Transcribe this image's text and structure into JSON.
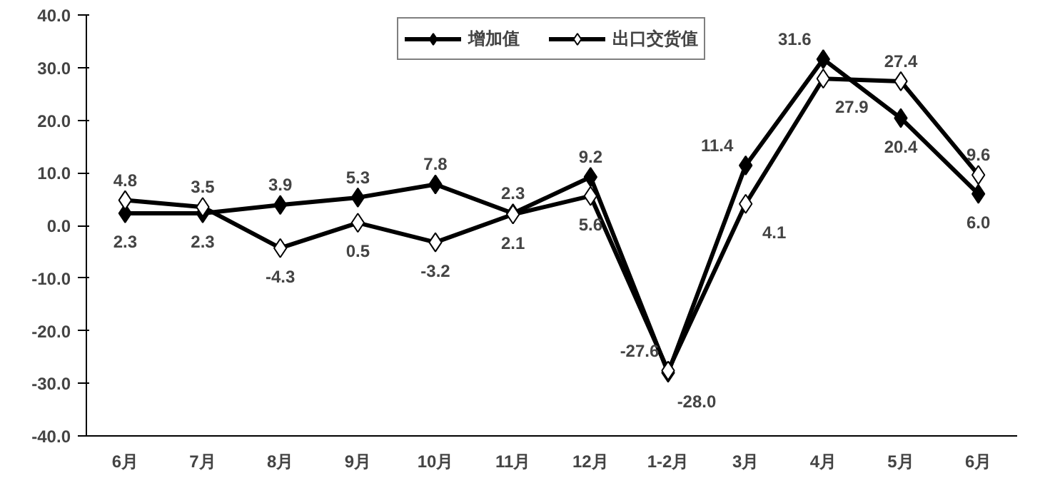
{
  "chart_data": {
    "type": "line",
    "categories": [
      "6月",
      "7月",
      "8月",
      "9月",
      "10月",
      "11月",
      "12月",
      "1-2月",
      "3月",
      "4月",
      "5月",
      "6月"
    ],
    "series": [
      {
        "name": "增加值",
        "color": "#000000",
        "marker": "diamond",
        "values": [
          2.3,
          2.3,
          3.9,
          5.3,
          7.8,
          2.3,
          9.2,
          -28.0,
          11.4,
          31.6,
          20.4,
          6.0
        ],
        "value_labels": [
          "2.3",
          "2.3",
          "3.9",
          "5.3",
          "7.8",
          "2.3",
          "9.2",
          "-28.0",
          "11.4",
          "31.6",
          "20.4",
          "6.0"
        ]
      },
      {
        "name": "出口交货值",
        "color": "#000000",
        "marker": "diamond_open",
        "values": [
          4.8,
          3.5,
          -4.3,
          0.5,
          -3.2,
          2.1,
          5.6,
          -27.6,
          4.1,
          27.9,
          27.4,
          9.6
        ],
        "value_labels": [
          "4.8",
          "3.5",
          "-4.3",
          "0.5",
          "-3.2",
          "2.1",
          "5.6",
          "-27.6",
          "4.1",
          "27.9",
          "27.4",
          "9.6"
        ]
      }
    ],
    "ylim": [
      -40,
      40
    ],
    "yticks": [
      {
        "value": -40,
        "label": "-40.0"
      },
      {
        "value": -30,
        "label": "-30.0"
      },
      {
        "value": -20,
        "label": "-20.0"
      },
      {
        "value": -10,
        "label": "-10.0"
      },
      {
        "value": 0,
        "label": "0.0"
      },
      {
        "value": 10,
        "label": "10.0"
      },
      {
        "value": 20,
        "label": "20.0"
      },
      {
        "value": 30,
        "label": "30.0"
      },
      {
        "value": 40,
        "label": "40.0"
      }
    ],
    "grid": false,
    "legend": "top",
    "line_style": "solid"
  }
}
